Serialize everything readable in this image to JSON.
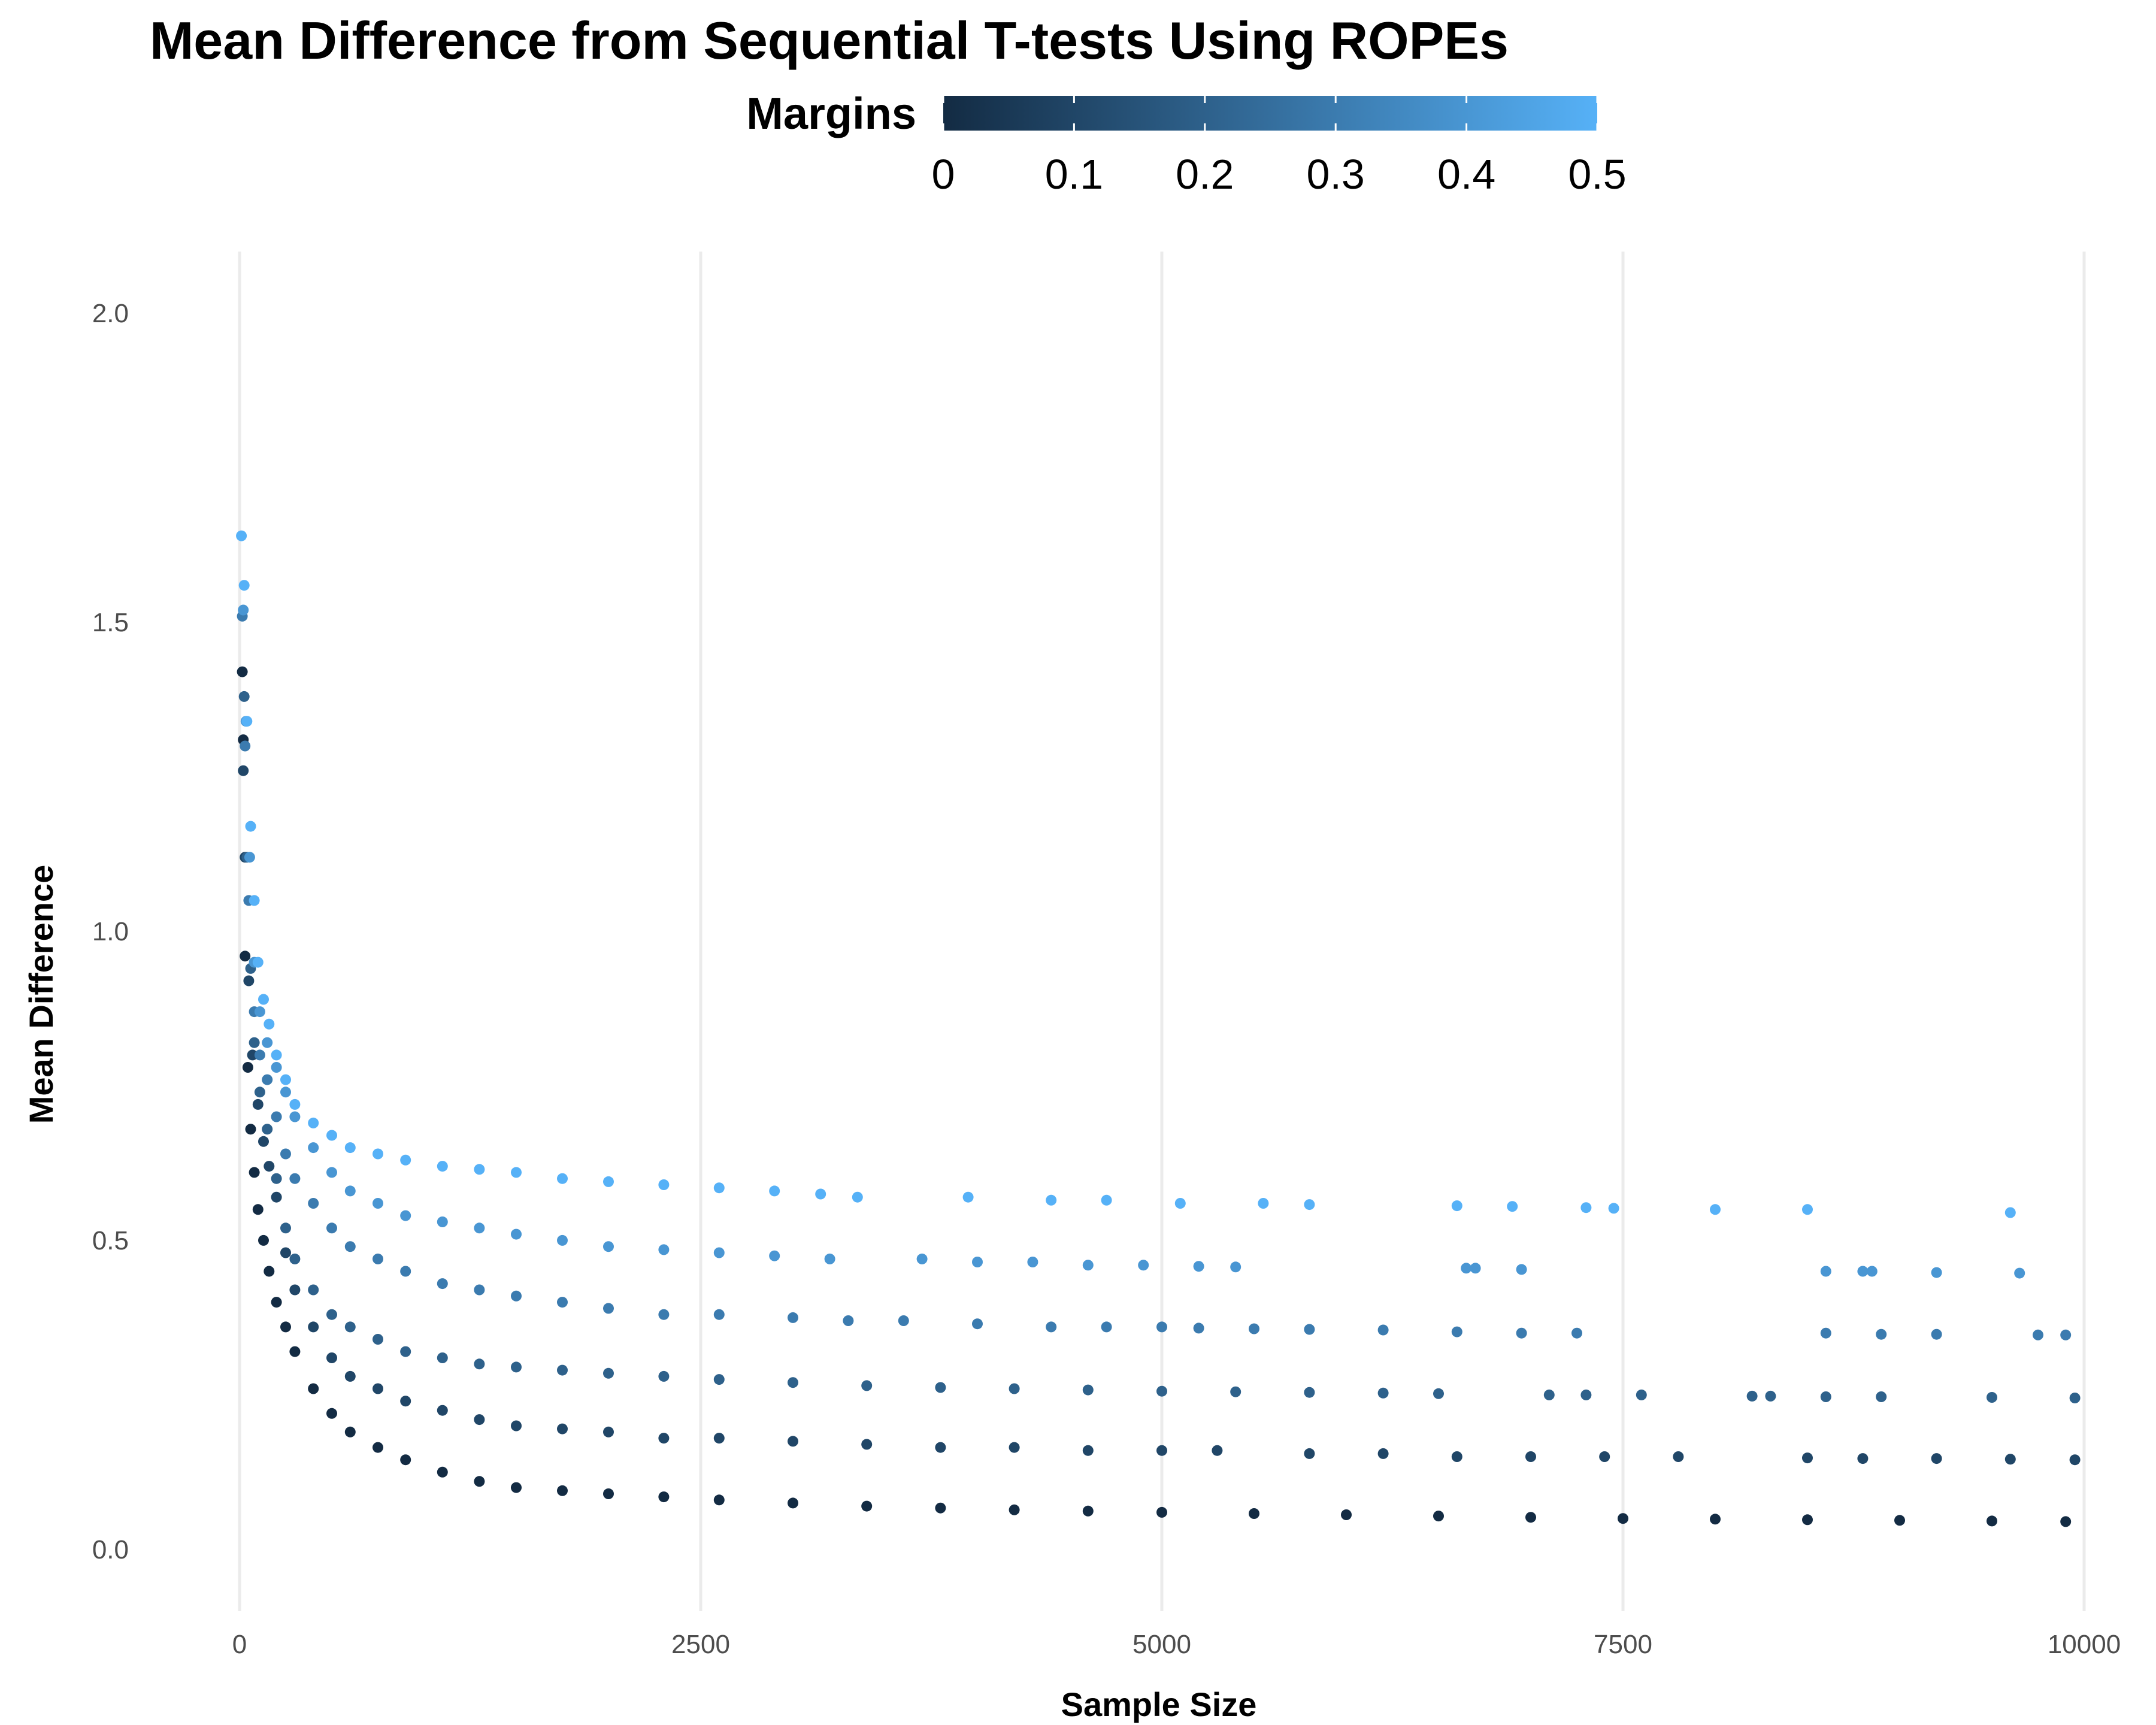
{
  "chart_data": {
    "type": "scatter",
    "title": "Mean Difference from Sequential T-tests Using ROPEs",
    "xlabel": "Sample Size",
    "ylabel": "Mean Difference",
    "xlim": [
      0,
      10000
    ],
    "ylim": [
      -0.1,
      2.1
    ],
    "x_ticks": [
      "0",
      "2500",
      "5000",
      "7500",
      "10000"
    ],
    "y_ticks": [
      "0.0",
      "0.5",
      "1.0",
      "1.5",
      "2.0"
    ],
    "grid": "vertical major lines only",
    "legend": {
      "title": "Margins",
      "type": "colorbar",
      "placement": "top",
      "ticks": [
        "0",
        "0.1",
        "0.2",
        "0.3",
        "0.4",
        "0.5"
      ],
      "range": [
        0,
        0.5
      ],
      "color_low": "#132B43",
      "color_high": "#56B1F7"
    },
    "series": [
      {
        "margin": 0,
        "x": [
          15,
          20,
          30,
          45,
          60,
          80,
          100,
          130,
          160,
          200,
          250,
          300,
          400,
          500,
          600,
          750,
          900,
          1100,
          1300,
          1500,
          1750,
          2000,
          2300,
          2600,
          3000,
          3400,
          3800,
          4200,
          4600,
          5000,
          5500,
          6000,
          6500,
          7000,
          7500,
          8000,
          8500,
          9000,
          9500,
          9900
        ],
        "y": [
          1.42,
          1.31,
          0.96,
          0.78,
          0.68,
          0.61,
          0.55,
          0.5,
          0.45,
          0.4,
          0.36,
          0.32,
          0.26,
          0.22,
          0.19,
          0.165,
          0.145,
          0.125,
          0.11,
          0.1,
          0.095,
          0.09,
          0.085,
          0.08,
          0.075,
          0.07,
          0.067,
          0.064,
          0.062,
          0.06,
          0.058,
          0.056,
          0.054,
          0.052,
          0.05,
          0.049,
          0.048,
          0.047,
          0.046,
          0.045
        ]
      },
      {
        "margin": 0.1,
        "x": [
          20,
          30,
          50,
          70,
          100,
          130,
          160,
          200,
          250,
          300,
          400,
          500,
          600,
          750,
          900,
          1100,
          1300,
          1500,
          1750,
          2000,
          2300,
          2600,
          3000,
          3400,
          3800,
          4200,
          4600,
          5000,
          5300,
          5800,
          6200,
          6600,
          7000,
          7400,
          7800,
          8500,
          8800,
          9200,
          9600,
          9950
        ],
        "y": [
          1.26,
          1.12,
          0.92,
          0.8,
          0.72,
          0.66,
          0.62,
          0.57,
          0.48,
          0.42,
          0.36,
          0.31,
          0.28,
          0.26,
          0.24,
          0.225,
          0.21,
          0.2,
          0.195,
          0.19,
          0.18,
          0.18,
          0.175,
          0.17,
          0.165,
          0.165,
          0.16,
          0.16,
          0.16,
          0.155,
          0.155,
          0.15,
          0.15,
          0.15,
          0.15,
          0.148,
          0.147,
          0.147,
          0.146,
          0.145
        ]
      },
      {
        "margin": 0.2,
        "x": [
          25,
          40,
          60,
          80,
          110,
          150,
          200,
          250,
          300,
          400,
          500,
          600,
          750,
          900,
          1100,
          1300,
          1500,
          1750,
          2000,
          2300,
          2600,
          3000,
          3400,
          3800,
          4200,
          4600,
          5000,
          5400,
          5800,
          6200,
          6500,
          7100,
          7300,
          7600,
          8200,
          8300,
          8600,
          8900,
          9500,
          9950
        ],
        "y": [
          1.38,
          1.12,
          0.94,
          0.82,
          0.74,
          0.68,
          0.6,
          0.52,
          0.47,
          0.42,
          0.38,
          0.36,
          0.34,
          0.32,
          0.31,
          0.3,
          0.295,
          0.29,
          0.285,
          0.28,
          0.275,
          0.27,
          0.265,
          0.262,
          0.26,
          0.258,
          0.256,
          0.255,
          0.254,
          0.253,
          0.252,
          0.25,
          0.25,
          0.25,
          0.248,
          0.248,
          0.247,
          0.247,
          0.246,
          0.245
        ]
      },
      {
        "margin": 0.3,
        "x": [
          15,
          30,
          50,
          80,
          110,
          150,
          200,
          250,
          300,
          400,
          500,
          600,
          750,
          900,
          1100,
          1300,
          1500,
          1750,
          2000,
          2300,
          2600,
          3000,
          3300,
          3600,
          4000,
          4400,
          4700,
          5000,
          5200,
          5500,
          5800,
          6200,
          6600,
          6950,
          7250,
          8600,
          8900,
          9200,
          9750,
          9900
        ],
        "y": [
          1.51,
          1.3,
          1.05,
          0.87,
          0.8,
          0.76,
          0.7,
          0.64,
          0.6,
          0.56,
          0.52,
          0.49,
          0.47,
          0.45,
          0.43,
          0.42,
          0.41,
          0.4,
          0.39,
          0.38,
          0.38,
          0.375,
          0.37,
          0.37,
          0.365,
          0.36,
          0.36,
          0.36,
          0.358,
          0.357,
          0.356,
          0.355,
          0.352,
          0.35,
          0.35,
          0.35,
          0.348,
          0.348,
          0.347,
          0.347
        ]
      },
      {
        "margin": 0.4,
        "x": [
          20,
          35,
          55,
          80,
          110,
          150,
          200,
          250,
          300,
          400,
          500,
          600,
          750,
          900,
          1100,
          1300,
          1500,
          1750,
          2000,
          2300,
          2600,
          2900,
          3200,
          3700,
          4000,
          4300,
          4600,
          4900,
          5200,
          5400,
          6650,
          6700,
          6950,
          8600,
          8800,
          8850,
          9200,
          9650
        ],
        "y": [
          1.52,
          1.34,
          1.12,
          0.95,
          0.87,
          0.82,
          0.78,
          0.74,
          0.7,
          0.65,
          0.61,
          0.58,
          0.56,
          0.54,
          0.53,
          0.52,
          0.51,
          0.5,
          0.49,
          0.485,
          0.48,
          0.475,
          0.47,
          0.47,
          0.465,
          0.465,
          0.46,
          0.46,
          0.458,
          0.457,
          0.455,
          0.455,
          0.453,
          0.45,
          0.45,
          0.45,
          0.448,
          0.447
        ]
      },
      {
        "margin": 0.5,
        "x": [
          10,
          25,
          40,
          60,
          80,
          100,
          130,
          160,
          200,
          250,
          300,
          400,
          500,
          600,
          750,
          900,
          1100,
          1300,
          1500,
          1750,
          2000,
          2300,
          2600,
          2900,
          3150,
          3350,
          3950,
          4400,
          4700,
          5100,
          5550,
          5800,
          6600,
          6900,
          7300,
          7450,
          8000,
          8500,
          9600
        ],
        "y": [
          1.64,
          1.56,
          1.34,
          1.17,
          1.05,
          0.95,
          0.89,
          0.85,
          0.8,
          0.76,
          0.72,
          0.69,
          0.67,
          0.65,
          0.64,
          0.63,
          0.62,
          0.615,
          0.61,
          0.6,
          0.595,
          0.59,
          0.585,
          0.58,
          0.575,
          0.57,
          0.57,
          0.565,
          0.565,
          0.56,
          0.56,
          0.558,
          0.556,
          0.555,
          0.553,
          0.552,
          0.55,
          0.55,
          0.545
        ]
      }
    ]
  }
}
